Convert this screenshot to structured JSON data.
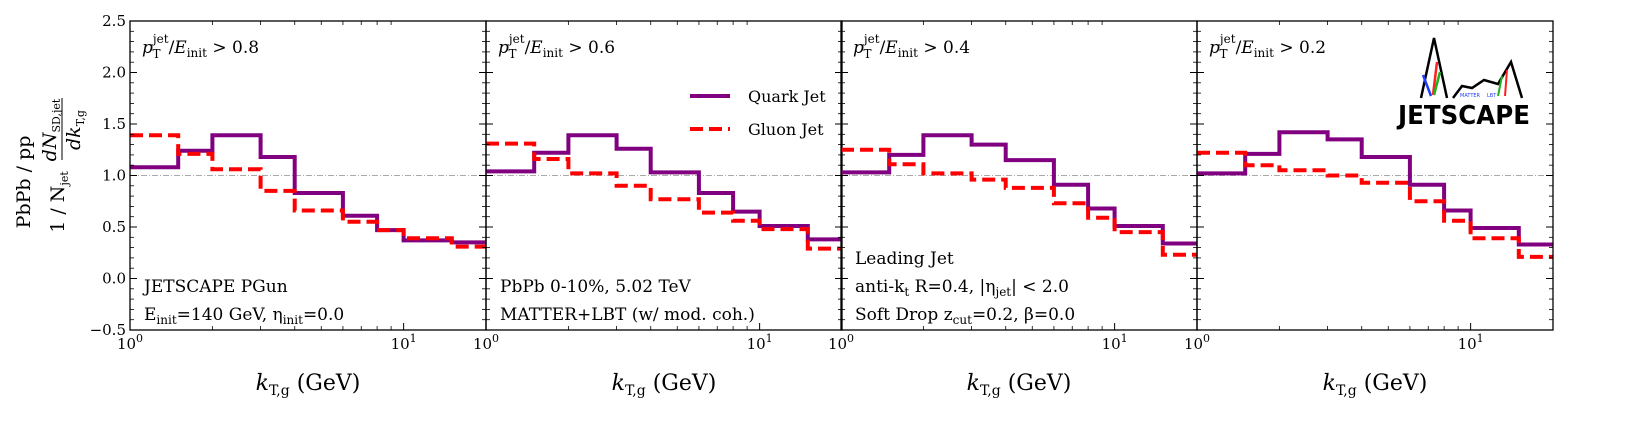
{
  "chart_data": {
    "type": "line",
    "subtype": "step-histogram",
    "colors": {
      "quark": "#800080",
      "gluon": "#ff0000",
      "reference_line": "#aaaaaa"
    },
    "ylabel": {
      "ratio": "PbPb / pp",
      "quantity_prefix": "1 / N",
      "quantity_sub_jet": "jet",
      "quantity_num": "dN",
      "quantity_num_sub": "SD,jet",
      "quantity_den": "dk",
      "quantity_den_sub": "T,g"
    },
    "xlabel": {
      "main": "k",
      "sub": "T,g",
      "unit": "(GeV)"
    },
    "ylim": [
      -0.5,
      2.5
    ],
    "yticks": [
      "−0.5",
      "0.0",
      "0.5",
      "1.0",
      "1.5",
      "2.0",
      "2.5"
    ],
    "x_scale": "log",
    "xlim": [
      1,
      20
    ],
    "xticks": [
      {
        "base": "10",
        "exp": "0"
      },
      {
        "base": "10",
        "exp": "1"
      }
    ],
    "reference_y": 1.0,
    "legend": {
      "position": "top-right of second panel",
      "entries": [
        "Quark Jet",
        "Gluon Jet"
      ]
    },
    "bins": [
      1,
      1.5,
      2,
      3,
      4,
      6,
      8,
      10,
      15,
      20
    ],
    "logo": {
      "text": "JETSCAPE",
      "small_labels": [
        "MATTER",
        "LBT"
      ]
    },
    "panels": [
      {
        "cut_label": {
          "var": "p",
          "var_sub": "T",
          "var_sup": "jet",
          "slash": "/",
          "den": "E",
          "den_sub": "init",
          "cmp": " > 0.8"
        },
        "annotations": [
          [
            {
              "t": "JETSCAPE PGun"
            }
          ],
          [
            {
              "t": "E"
            },
            {
              "t": "init",
              "sub": true
            },
            {
              "t": "=140 GeV, "
            },
            {
              "t": "η"
            },
            {
              "t": "init",
              "sub": true
            },
            {
              "t": "=0.0"
            }
          ]
        ],
        "series": [
          {
            "name": "Quark Jet",
            "values": [
              1.08,
              1.24,
              1.39,
              1.18,
              0.83,
              0.61,
              0.47,
              0.37,
              0.35
            ]
          },
          {
            "name": "Gluon Jet",
            "values": [
              1.39,
              1.21,
              1.06,
              0.85,
              0.66,
              0.55,
              0.47,
              0.39,
              0.31
            ]
          }
        ]
      },
      {
        "cut_label": {
          "var": "p",
          "var_sub": "T",
          "var_sup": "jet",
          "slash": "/",
          "den": "E",
          "den_sub": "init",
          "cmp": " > 0.6"
        },
        "annotations": [
          [
            {
              "t": "PbPb 0-10%, 5.02 TeV"
            }
          ],
          [
            {
              "t": "MATTER+LBT (w/ mod. coh.)"
            }
          ]
        ],
        "series": [
          {
            "name": "Quark Jet",
            "values": [
              1.04,
              1.22,
              1.39,
              1.26,
              1.03,
              0.83,
              0.65,
              0.51,
              0.38
            ]
          },
          {
            "name": "Gluon Jet",
            "values": [
              1.31,
              1.16,
              1.02,
              0.9,
              0.77,
              0.64,
              0.56,
              0.48,
              0.29
            ]
          }
        ]
      },
      {
        "cut_label": {
          "var": "p",
          "var_sub": "T",
          "var_sup": "jet",
          "slash": "/",
          "den": "E",
          "den_sub": "init",
          "cmp": " > 0.4"
        },
        "annotations": [
          [
            {
              "t": "Leading Jet"
            }
          ],
          [
            {
              "t": "anti-"
            },
            {
              "t": "k"
            },
            {
              "t": "t",
              "sub": true
            },
            {
              "t": " R=0.4, |"
            },
            {
              "t": "η"
            },
            {
              "t": "jet",
              "sub": true
            },
            {
              "t": "| < 2.0"
            }
          ],
          [
            {
              "t": "Soft Drop "
            },
            {
              "t": "z"
            },
            {
              "t": "cut",
              "sub": true
            },
            {
              "t": "=0.2, "
            },
            {
              "t": "β"
            },
            {
              "t": "=0.0"
            }
          ]
        ],
        "series": [
          {
            "name": "Quark Jet",
            "values": [
              1.03,
              1.2,
              1.39,
              1.3,
              1.15,
              0.91,
              0.68,
              0.51,
              0.34
            ]
          },
          {
            "name": "Gluon Jet",
            "values": [
              1.25,
              1.11,
              1.02,
              0.96,
              0.88,
              0.73,
              0.59,
              0.45,
              0.23
            ]
          }
        ]
      },
      {
        "cut_label": {
          "var": "p",
          "var_sub": "T",
          "var_sup": "jet",
          "slash": "/",
          "den": "E",
          "den_sub": "init",
          "cmp": " > 0.2"
        },
        "annotations": [],
        "series": [
          {
            "name": "Quark Jet",
            "values": [
              1.02,
              1.21,
              1.42,
              1.35,
              1.18,
              0.91,
              0.66,
              0.49,
              0.33
            ]
          },
          {
            "name": "Gluon Jet",
            "values": [
              1.22,
              1.1,
              1.05,
              1.0,
              0.93,
              0.75,
              0.56,
              0.39,
              0.21
            ]
          }
        ]
      }
    ]
  }
}
